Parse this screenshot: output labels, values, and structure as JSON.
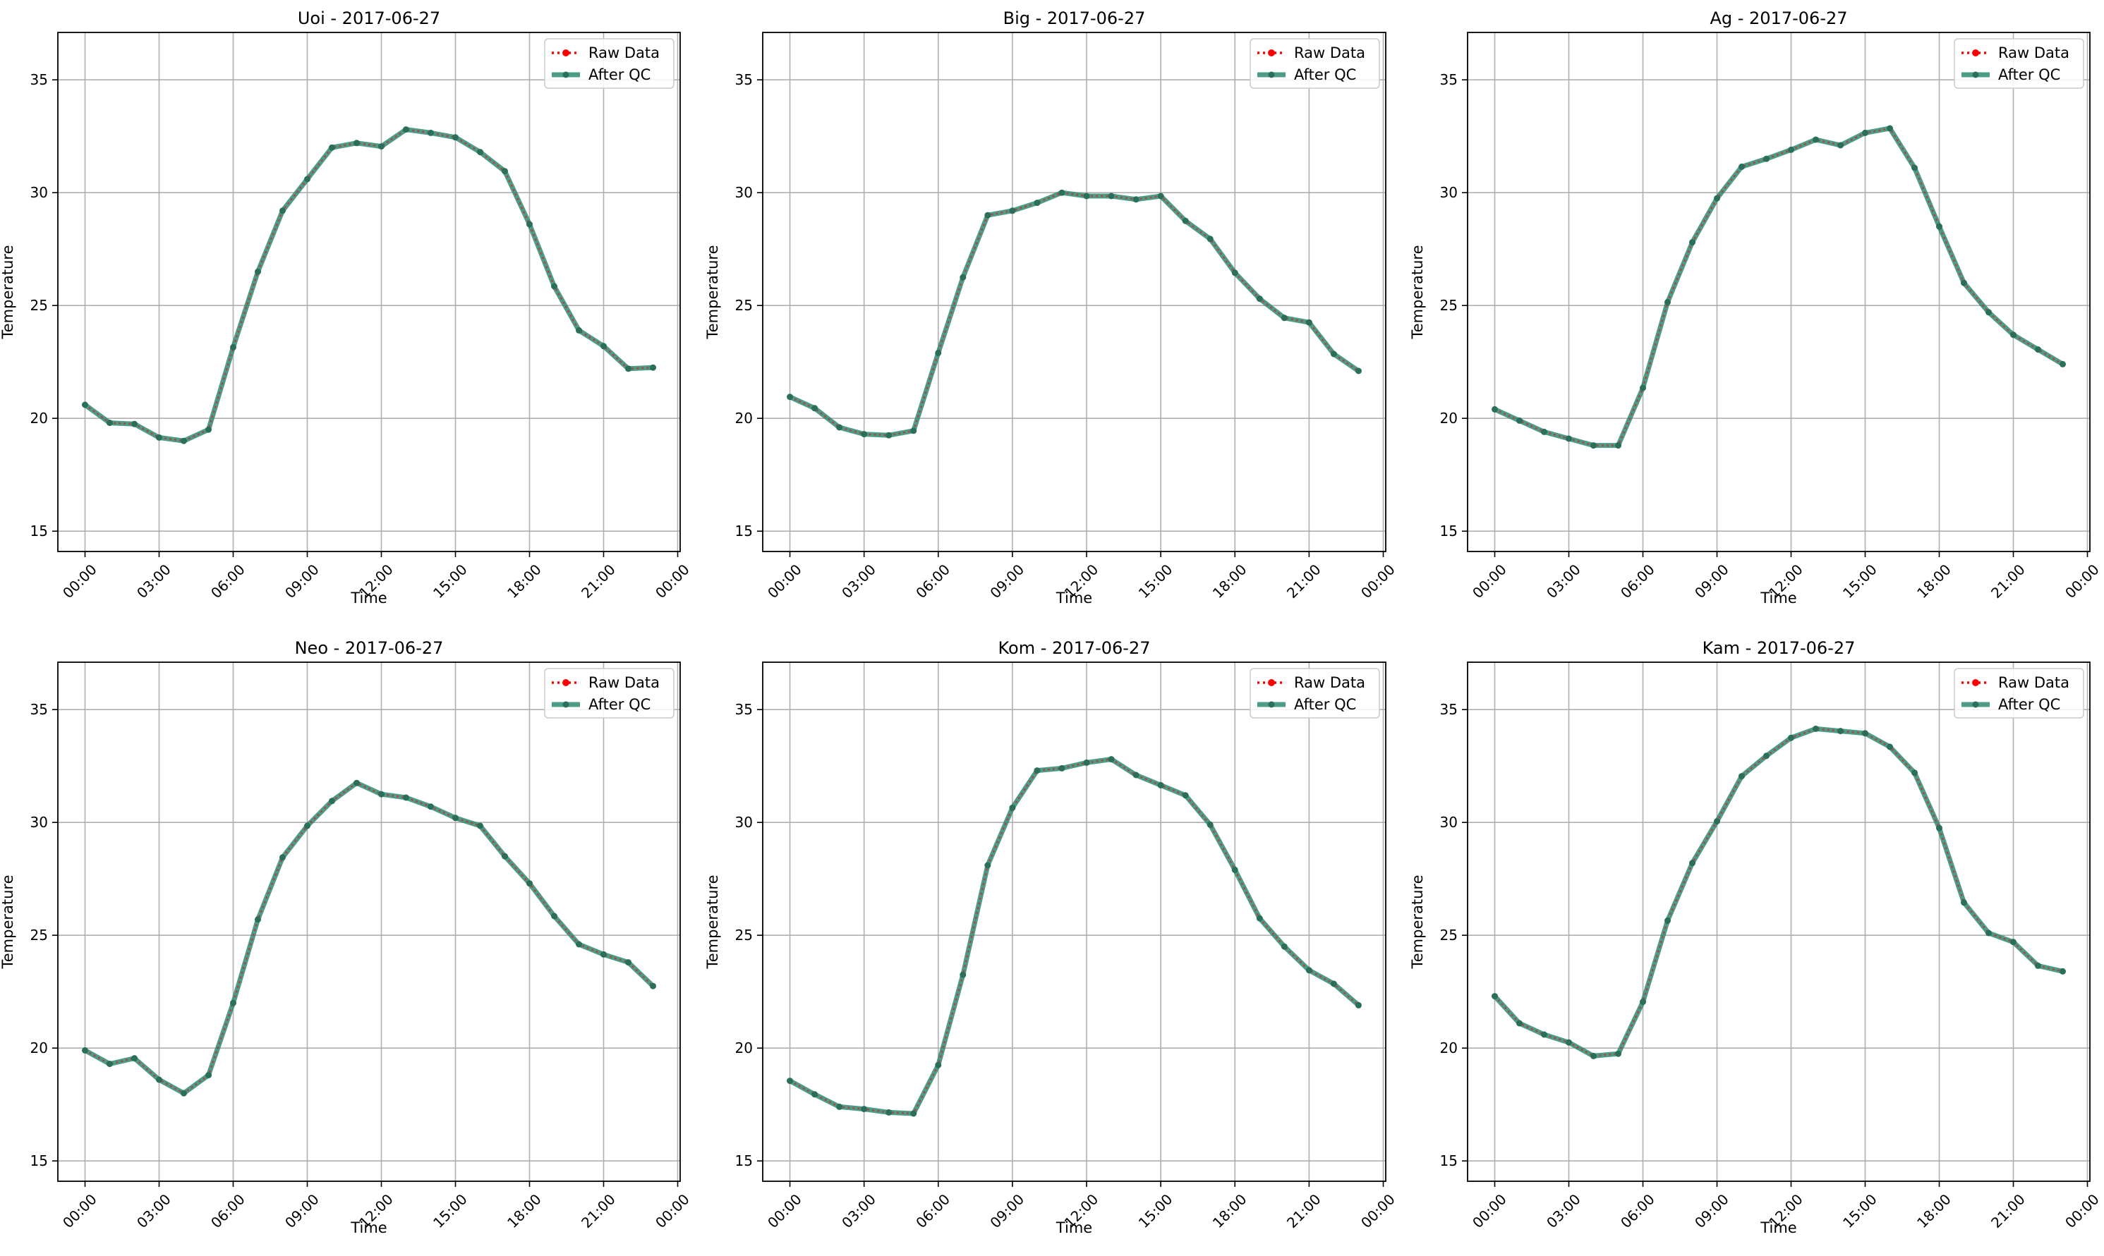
{
  "chart_data": [
    {
      "type": "line",
      "title": "Uoi - 2017-06-27",
      "xlabel": "Time",
      "ylabel": "Temperature",
      "xlim": [
        -1.1,
        24.1
      ],
      "ylim": [
        14.1,
        37.1
      ],
      "xticks": [
        0,
        3,
        6,
        9,
        12,
        15,
        18,
        21,
        24
      ],
      "xtick_labels": [
        "00:00",
        "03:00",
        "06:00",
        "09:00",
        "12:00",
        "15:00",
        "18:00",
        "21:00",
        "00:00"
      ],
      "yticks": [
        15,
        20,
        25,
        30,
        35
      ],
      "grid": true,
      "legend": "top-right",
      "x": [
        0,
        1,
        2,
        3,
        4,
        5,
        6,
        7,
        8,
        9,
        10,
        11,
        12,
        13,
        14,
        15,
        16,
        17,
        18,
        19,
        20,
        21,
        22,
        23
      ],
      "series": [
        {
          "name": "Raw Data",
          "color": "#ff0000",
          "values": [
            20.6,
            19.8,
            19.75,
            19.15,
            19.0,
            19.5,
            23.15,
            26.5,
            29.2,
            30.6,
            32.0,
            32.2,
            32.05,
            32.8,
            32.65,
            32.45,
            31.8,
            30.95,
            28.6,
            25.85,
            23.9,
            23.2,
            22.2,
            22.25
          ]
        },
        {
          "name": "After QC",
          "color": "#2e8b72",
          "values": [
            20.6,
            19.8,
            19.75,
            19.15,
            19.0,
            19.5,
            23.15,
            26.5,
            29.2,
            30.6,
            32.0,
            32.2,
            32.05,
            32.8,
            32.65,
            32.45,
            31.8,
            30.95,
            28.6,
            25.85,
            23.9,
            23.2,
            22.2,
            22.25
          ]
        }
      ]
    },
    {
      "type": "line",
      "title": "Big - 2017-06-27",
      "xlabel": "Time",
      "ylabel": "Temperature",
      "xlim": [
        -1.1,
        24.1
      ],
      "ylim": [
        14.1,
        37.1
      ],
      "xticks": [
        0,
        3,
        6,
        9,
        12,
        15,
        18,
        21,
        24
      ],
      "xtick_labels": [
        "00:00",
        "03:00",
        "06:00",
        "09:00",
        "12:00",
        "15:00",
        "18:00",
        "21:00",
        "00:00"
      ],
      "yticks": [
        15,
        20,
        25,
        30,
        35
      ],
      "grid": true,
      "legend": "top-right",
      "x": [
        0,
        1,
        2,
        3,
        4,
        5,
        6,
        7,
        8,
        9,
        10,
        11,
        12,
        13,
        14,
        15,
        16,
        17,
        18,
        19,
        20,
        21,
        22,
        23
      ],
      "series": [
        {
          "name": "Raw Data",
          "color": "#ff0000",
          "values": [
            20.95,
            20.45,
            19.6,
            19.3,
            19.25,
            19.45,
            22.9,
            26.25,
            29.0,
            29.2,
            29.55,
            30.0,
            29.85,
            29.85,
            29.7,
            29.85,
            28.75,
            27.95,
            26.45,
            25.3,
            24.45,
            24.25,
            22.85,
            22.1
          ]
        },
        {
          "name": "After QC",
          "color": "#2e8b72",
          "values": [
            20.95,
            20.45,
            19.6,
            19.3,
            19.25,
            19.45,
            22.9,
            26.25,
            29.0,
            29.2,
            29.55,
            30.0,
            29.85,
            29.85,
            29.7,
            29.85,
            28.75,
            27.95,
            26.45,
            25.3,
            24.45,
            24.25,
            22.85,
            22.1
          ]
        }
      ]
    },
    {
      "type": "line",
      "title": "Ag - 2017-06-27",
      "xlabel": "Time",
      "ylabel": "Temperature",
      "xlim": [
        -1.1,
        24.1
      ],
      "ylim": [
        14.1,
        37.1
      ],
      "xticks": [
        0,
        3,
        6,
        9,
        12,
        15,
        18,
        21,
        24
      ],
      "xtick_labels": [
        "00:00",
        "03:00",
        "06:00",
        "09:00",
        "12:00",
        "15:00",
        "18:00",
        "21:00",
        "00:00"
      ],
      "yticks": [
        15,
        20,
        25,
        30,
        35
      ],
      "grid": true,
      "legend": "top-right",
      "x": [
        0,
        1,
        2,
        3,
        4,
        5,
        6,
        7,
        8,
        9,
        10,
        11,
        12,
        13,
        14,
        15,
        16,
        17,
        18,
        19,
        20,
        21,
        22,
        23
      ],
      "series": [
        {
          "name": "Raw Data",
          "color": "#ff0000",
          "values": [
            20.4,
            19.9,
            19.4,
            19.1,
            18.8,
            18.8,
            21.35,
            25.15,
            27.8,
            29.75,
            31.15,
            31.5,
            31.9,
            32.35,
            32.1,
            32.65,
            32.85,
            31.1,
            28.5,
            26.0,
            24.7,
            23.7,
            23.05,
            22.4
          ]
        },
        {
          "name": "After QC",
          "color": "#2e8b72",
          "values": [
            20.4,
            19.9,
            19.4,
            19.1,
            18.8,
            18.8,
            21.35,
            25.15,
            27.8,
            29.75,
            31.15,
            31.5,
            31.9,
            32.35,
            32.1,
            32.65,
            32.85,
            31.1,
            28.5,
            26.0,
            24.7,
            23.7,
            23.05,
            22.4
          ]
        }
      ]
    },
    {
      "type": "line",
      "title": "Neo - 2017-06-27",
      "xlabel": "Time",
      "ylabel": "Temperature",
      "xlim": [
        -1.1,
        24.1
      ],
      "ylim": [
        14.1,
        37.1
      ],
      "xticks": [
        0,
        3,
        6,
        9,
        12,
        15,
        18,
        21,
        24
      ],
      "xtick_labels": [
        "00:00",
        "03:00",
        "06:00",
        "09:00",
        "12:00",
        "15:00",
        "18:00",
        "21:00",
        "00:00"
      ],
      "yticks": [
        15,
        20,
        25,
        30,
        35
      ],
      "grid": true,
      "legend": "top-right",
      "x": [
        0,
        1,
        2,
        3,
        4,
        5,
        6,
        7,
        8,
        9,
        10,
        11,
        12,
        13,
        14,
        15,
        16,
        17,
        18,
        19,
        20,
        21,
        22,
        23
      ],
      "series": [
        {
          "name": "Raw Data",
          "color": "#ff0000",
          "values": [
            19.9,
            19.3,
            19.55,
            18.6,
            18.0,
            18.8,
            22.0,
            25.7,
            28.45,
            29.85,
            30.95,
            31.75,
            31.25,
            31.1,
            30.7,
            30.2,
            29.85,
            28.5,
            27.3,
            25.85,
            24.6,
            24.15,
            23.8,
            22.75
          ]
        },
        {
          "name": "After QC",
          "color": "#2e8b72",
          "values": [
            19.9,
            19.3,
            19.55,
            18.6,
            18.0,
            18.8,
            22.0,
            25.7,
            28.45,
            29.85,
            30.95,
            31.75,
            31.25,
            31.1,
            30.7,
            30.2,
            29.85,
            28.5,
            27.3,
            25.85,
            24.6,
            24.15,
            23.8,
            22.75
          ]
        }
      ]
    },
    {
      "type": "line",
      "title": "Kom - 2017-06-27",
      "xlabel": "Time",
      "ylabel": "Temperature",
      "xlim": [
        -1.1,
        24.1
      ],
      "ylim": [
        14.1,
        37.1
      ],
      "xticks": [
        0,
        3,
        6,
        9,
        12,
        15,
        18,
        21,
        24
      ],
      "xtick_labels": [
        "00:00",
        "03:00",
        "06:00",
        "09:00",
        "12:00",
        "15:00",
        "18:00",
        "21:00",
        "00:00"
      ],
      "yticks": [
        15,
        20,
        25,
        30,
        35
      ],
      "grid": true,
      "legend": "top-right",
      "x": [
        0,
        1,
        2,
        3,
        4,
        5,
        6,
        7,
        8,
        9,
        10,
        11,
        12,
        13,
        14,
        15,
        16,
        17,
        18,
        19,
        20,
        21,
        22,
        23
      ],
      "series": [
        {
          "name": "Raw Data",
          "color": "#ff0000",
          "values": [
            18.55,
            17.95,
            17.4,
            17.3,
            17.15,
            17.1,
            19.25,
            23.25,
            28.1,
            30.65,
            32.3,
            32.4,
            32.65,
            32.8,
            32.1,
            31.65,
            31.2,
            29.9,
            27.9,
            25.75,
            24.5,
            23.45,
            22.85,
            21.9
          ]
        },
        {
          "name": "After QC",
          "color": "#2e8b72",
          "values": [
            18.55,
            17.95,
            17.4,
            17.3,
            17.15,
            17.1,
            19.25,
            23.25,
            28.1,
            30.65,
            32.3,
            32.4,
            32.65,
            32.8,
            32.1,
            31.65,
            31.2,
            29.9,
            27.9,
            25.75,
            24.5,
            23.45,
            22.85,
            21.9
          ]
        }
      ]
    },
    {
      "type": "line",
      "title": "Kam - 2017-06-27",
      "xlabel": "Time",
      "ylabel": "Temperature",
      "xlim": [
        -1.1,
        24.1
      ],
      "ylim": [
        14.1,
        37.1
      ],
      "xticks": [
        0,
        3,
        6,
        9,
        12,
        15,
        18,
        21,
        24
      ],
      "xtick_labels": [
        "00:00",
        "03:00",
        "06:00",
        "09:00",
        "12:00",
        "15:00",
        "18:00",
        "21:00",
        "00:00"
      ],
      "yticks": [
        15,
        20,
        25,
        30,
        35
      ],
      "grid": true,
      "legend": "top-right",
      "x": [
        0,
        1,
        2,
        3,
        4,
        5,
        6,
        7,
        8,
        9,
        10,
        11,
        12,
        13,
        14,
        15,
        16,
        17,
        18,
        19,
        20,
        21,
        22,
        23
      ],
      "series": [
        {
          "name": "Raw Data",
          "color": "#ff0000",
          "values": [
            22.3,
            21.1,
            20.6,
            20.25,
            19.65,
            19.75,
            22.05,
            25.65,
            28.2,
            30.05,
            32.05,
            32.95,
            33.75,
            34.15,
            34.05,
            33.95,
            33.35,
            32.2,
            29.75,
            26.45,
            25.1,
            24.7,
            23.65,
            23.4
          ]
        },
        {
          "name": "After QC",
          "color": "#2e8b72",
          "values": [
            22.3,
            21.1,
            20.6,
            20.25,
            19.65,
            19.75,
            22.05,
            25.65,
            28.2,
            30.05,
            32.05,
            32.95,
            33.75,
            34.15,
            34.05,
            33.95,
            33.35,
            32.2,
            29.75,
            26.45,
            25.1,
            24.7,
            23.65,
            23.4
          ]
        }
      ]
    }
  ]
}
